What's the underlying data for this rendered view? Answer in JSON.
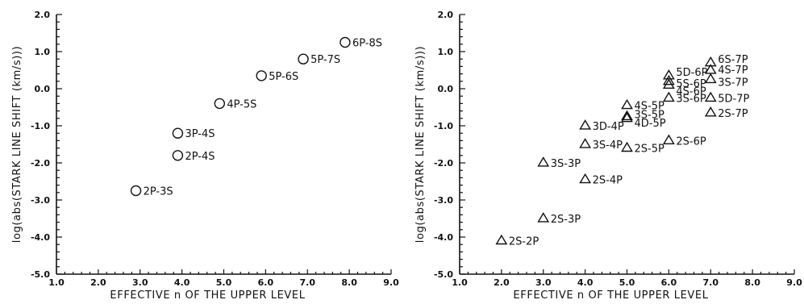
{
  "chart_data": [
    {
      "type": "scatter",
      "marker": "circle",
      "xlabel": "EFFECTIVE n OF THE UPPER LEVEL",
      "ylabel": "log(abs(STARK LINE SHIFT (km/s)))",
      "xlim": [
        1.0,
        9.0
      ],
      "ylim": [
        -5.0,
        2.0
      ],
      "xticks": [
        "1.0",
        "2.0",
        "3.0",
        "4.0",
        "5.0",
        "6.0",
        "7.0",
        "8.0",
        "9.0"
      ],
      "yticks": [
        "-5.0",
        "-4.0",
        "-3.0",
        "-2.0",
        "-1.0",
        "0.0",
        "1.0",
        "2.0"
      ],
      "points": [
        {
          "x": 2.9,
          "y": -2.75,
          "label": "2P-3S"
        },
        {
          "x": 3.9,
          "y": -1.8,
          "label": "2P-4S"
        },
        {
          "x": 3.9,
          "y": -1.2,
          "label": "3P-4S"
        },
        {
          "x": 4.9,
          "y": -0.4,
          "label": "4P-5S"
        },
        {
          "x": 5.9,
          "y": 0.35,
          "label": "5P-6S"
        },
        {
          "x": 6.9,
          "y": 0.8,
          "label": "5P-7S"
        },
        {
          "x": 7.9,
          "y": 1.25,
          "label": "6P-8S"
        }
      ]
    },
    {
      "type": "scatter",
      "marker": "triangle",
      "xlabel": "EFFECTIVE n OF THE UPPER LEVEL",
      "ylabel": "log(abs(STARK LINE SHIFT (km/s)))",
      "xlim": [
        1.0,
        9.0
      ],
      "ylim": [
        -5.0,
        2.0
      ],
      "xticks": [
        "1.0",
        "2.0",
        "3.0",
        "4.0",
        "5.0",
        "6.0",
        "7.0",
        "8.0",
        "9.0"
      ],
      "yticks": [
        "-5.0",
        "-4.0",
        "-3.0",
        "-2.0",
        "-1.0",
        "0.0",
        "1.0",
        "2.0"
      ],
      "points": [
        {
          "x": 2.0,
          "y": -4.1,
          "label": "2S-2P"
        },
        {
          "x": 3.0,
          "y": -3.5,
          "label": "2S-3P"
        },
        {
          "x": 3.0,
          "y": -2.0,
          "label": "3S-3P"
        },
        {
          "x": 4.0,
          "y": -2.45,
          "label": "2S-4P"
        },
        {
          "x": 4.0,
          "y": -1.5,
          "label": "3S-4P"
        },
        {
          "x": 4.0,
          "y": -1.0,
          "label": "3D-4P"
        },
        {
          "x": 5.0,
          "y": -1.6,
          "label": "2S-5P"
        },
        {
          "x": 5.0,
          "y": -0.45,
          "label": "4S-5P"
        },
        {
          "x": 5.0,
          "y": -0.75,
          "label": "3S-5P"
        },
        {
          "x": 5.0,
          "y": -0.8,
          "label": "4D-5P"
        },
        {
          "x": 6.0,
          "y": -1.4,
          "label": "2S-6P"
        },
        {
          "x": 6.0,
          "y": -0.25,
          "label": "3S-6P"
        },
        {
          "x": 6.0,
          "y": 0.35,
          "label": "5D-6P"
        },
        {
          "x": 6.0,
          "y": 0.2,
          "label": "5S-6P"
        },
        {
          "x": 6.0,
          "y": 0.1,
          "label": "4S-6P"
        },
        {
          "x": 7.0,
          "y": -0.65,
          "label": "2S-7P"
        },
        {
          "x": 7.0,
          "y": -0.25,
          "label": "5D-7P"
        },
        {
          "x": 7.0,
          "y": 0.25,
          "label": "3S-7P"
        },
        {
          "x": 7.0,
          "y": 0.5,
          "label": "4S-7P"
        },
        {
          "x": 7.0,
          "y": 0.7,
          "label": "6S-7P"
        }
      ]
    }
  ]
}
